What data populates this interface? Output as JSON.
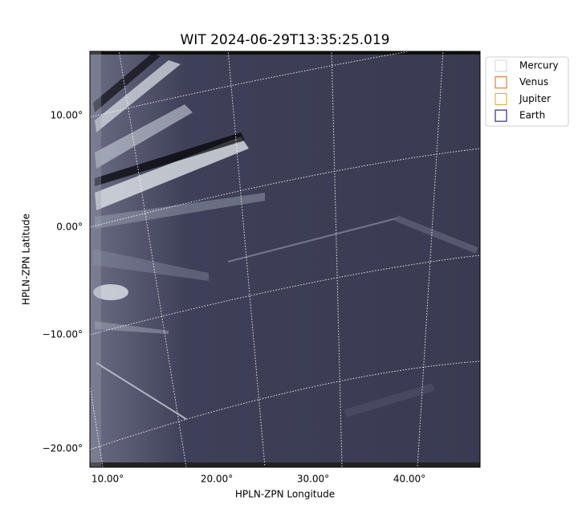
{
  "plot": {
    "title": "WIT 2024-06-29T13:35:25.019",
    "xlabel": "HPLN-ZPN Longitude",
    "ylabel": "HPLN-ZPN Latitude",
    "xticks": [
      "10.00°",
      "20.00°",
      "30.00°",
      "40.00°"
    ],
    "yticks": [
      "10.00°",
      "0.00°",
      "−10.00°",
      "−20.00°"
    ],
    "legend": [
      {
        "label": "Mercury",
        "color": "#d3d3d3"
      },
      {
        "label": "Venus",
        "color": "#d2691e"
      },
      {
        "label": "Jupiter",
        "color": "#daa520"
      },
      {
        "label": "Earth",
        "color": "#000080"
      }
    ]
  }
}
